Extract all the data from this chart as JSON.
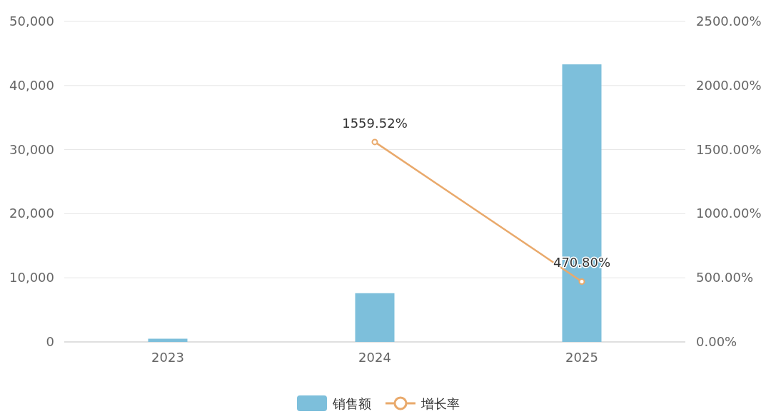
{
  "chart_data": {
    "type": "bar",
    "categories": [
      "2023",
      "2024",
      "2025"
    ],
    "series": [
      {
        "name": "销售额",
        "color": "#7dbfdb",
        "values": [
          500,
          7600,
          43300
        ]
      },
      {
        "name": "增长率",
        "type": "line",
        "axis": "y2",
        "color": "#e9a96b",
        "marker": "circle",
        "values": [
          null,
          1559.52,
          470.8
        ],
        "value_labels": [
          null,
          "1559.52%",
          "470.80%"
        ]
      }
    ],
    "ylim": [
      0,
      50000
    ],
    "yticks": [
      0,
      {
        "value": 10000,
        "label": "10,000"
      },
      {
        "value": 20000,
        "label": "20,000"
      },
      {
        "value": 30000,
        "label": "30,000"
      },
      {
        "value": 40000,
        "label": "40,000"
      },
      {
        "value": 50000,
        "label": "50,000"
      }
    ],
    "y2lim": [
      0,
      2500
    ],
    "y2ticks": [
      {
        "value": 0,
        "label": "0.00%"
      },
      {
        "value": 500,
        "label": "500.00%"
      },
      {
        "value": 1000,
        "label": "1000.00%"
      },
      {
        "value": 1500,
        "label": "1500.00%"
      },
      {
        "value": 2000,
        "label": "2000.00%"
      },
      {
        "value": 2500,
        "label": "2500.00%"
      }
    ],
    "grid": "y",
    "legend": "bottom"
  }
}
